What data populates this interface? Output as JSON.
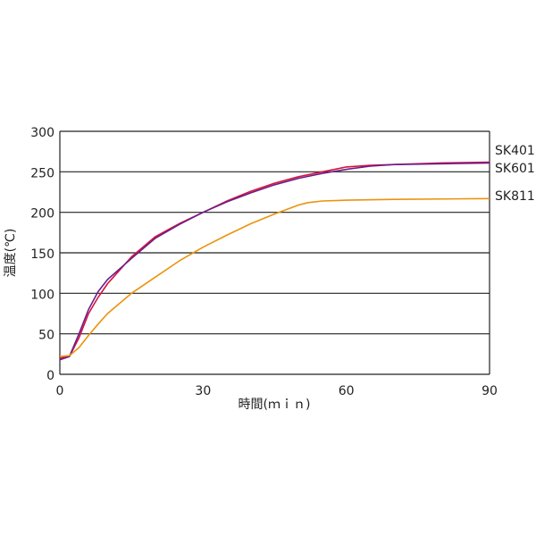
{
  "chart_data": {
    "type": "line",
    "title": "",
    "xlabel": "時間(ｍｉｎ)",
    "ylabel": "温度(℃)",
    "xlim": [
      0,
      90
    ],
    "ylim": [
      0,
      300
    ],
    "xticks": [
      0,
      30,
      60,
      90
    ],
    "yticks": [
      0,
      50,
      100,
      150,
      200,
      250,
      300
    ],
    "grid": "horizontal",
    "legend": "right, labels at line ends",
    "series": [
      {
        "name": "SK401",
        "color": "#d4143c",
        "x": [
          0,
          2,
          4,
          6,
          8,
          10,
          15,
          20,
          25,
          30,
          35,
          40,
          45,
          50,
          55,
          60,
          65,
          70,
          80,
          90
        ],
        "y": [
          20,
          22,
          45,
          75,
          95,
          112,
          145,
          170,
          186,
          200,
          214,
          226,
          236,
          244,
          250,
          256,
          258,
          259,
          261,
          262
        ]
      },
      {
        "name": "SK601",
        "color": "#6b1e8c",
        "x": [
          0,
          2,
          4,
          6,
          8,
          10,
          15,
          20,
          25,
          30,
          35,
          40,
          45,
          50,
          55,
          60,
          65,
          70,
          80,
          90
        ],
        "y": [
          18,
          22,
          50,
          80,
          102,
          117,
          143,
          168,
          185,
          200,
          213,
          224,
          234,
          242,
          248,
          253,
          257,
          259,
          260,
          261
        ]
      },
      {
        "name": "SK811",
        "color": "#ec920c",
        "x": [
          0,
          2,
          4,
          6,
          8,
          10,
          15,
          20,
          25,
          30,
          35,
          40,
          45,
          50,
          52,
          55,
          60,
          70,
          90
        ],
        "y": [
          22,
          23,
          33,
          48,
          62,
          75,
          100,
          120,
          140,
          157,
          172,
          186,
          198,
          209,
          212,
          214,
          215,
          216,
          217
        ]
      }
    ]
  }
}
